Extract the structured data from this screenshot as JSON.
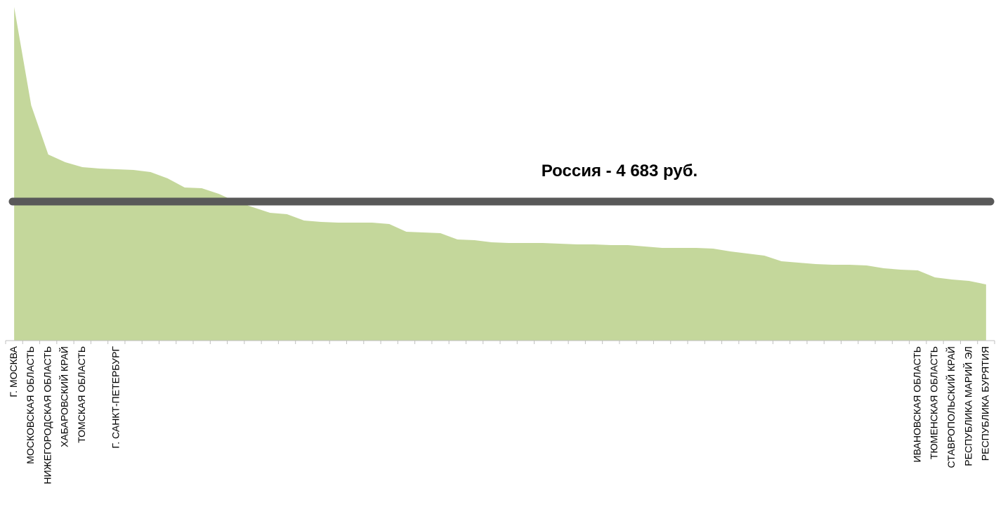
{
  "chart_data": {
    "type": "area",
    "categories": [
      "Г. МОСКВА",
      "МОСКОВСКАЯ ОБЛАСТЬ",
      "НИЖЕГОРОДСКАЯ ОБЛАСТЬ",
      "ХАБАРОВСКИЙ КРАЙ",
      "ТОМСКАЯ ОБЛАСТЬ",
      null,
      "Г. САНКТ-ПЕТЕРБУРГ",
      null,
      null,
      null,
      null,
      null,
      null,
      null,
      null,
      null,
      null,
      null,
      null,
      null,
      null,
      null,
      null,
      null,
      null,
      null,
      null,
      null,
      null,
      null,
      null,
      null,
      null,
      null,
      null,
      null,
      null,
      null,
      null,
      null,
      null,
      null,
      null,
      null,
      null,
      null,
      null,
      null,
      null,
      null,
      null,
      null,
      null,
      "ИВАНОВСКАЯ ОБЛАСТЬ",
      "ТЮМЕНСКАЯ ОБЛАСТЬ",
      "СТАВРОПОЛЬСКИЙ КРАЙ",
      "РЕСПУБЛИКА МАРИЙ ЭЛ",
      "РЕСПУБЛИКА БУРЯТИЯ"
    ],
    "values": [
      11234,
      7923,
      6267,
      6007,
      5842,
      5794,
      5771,
      5747,
      5676,
      5463,
      5156,
      5132,
      4943,
      4683,
      4494,
      4304,
      4257,
      4044,
      3997,
      3973,
      3973,
      3973,
      3926,
      3666,
      3642,
      3618,
      3406,
      3382,
      3311,
      3287,
      3287,
      3287,
      3264,
      3240,
      3240,
      3216,
      3216,
      3169,
      3122,
      3122,
      3122,
      3098,
      3004,
      2933,
      2862,
      2672,
      2625,
      2578,
      2554,
      2554,
      2531,
      2436,
      2389,
      2365,
      2129,
      2058,
      2010,
      1892
    ],
    "color": "#c4d79b",
    "ylim": [
      0,
      11470
    ],
    "reference_line": {
      "value": 4683,
      "label": "Россия - 4 683 руб.",
      "color": "#595959"
    }
  }
}
